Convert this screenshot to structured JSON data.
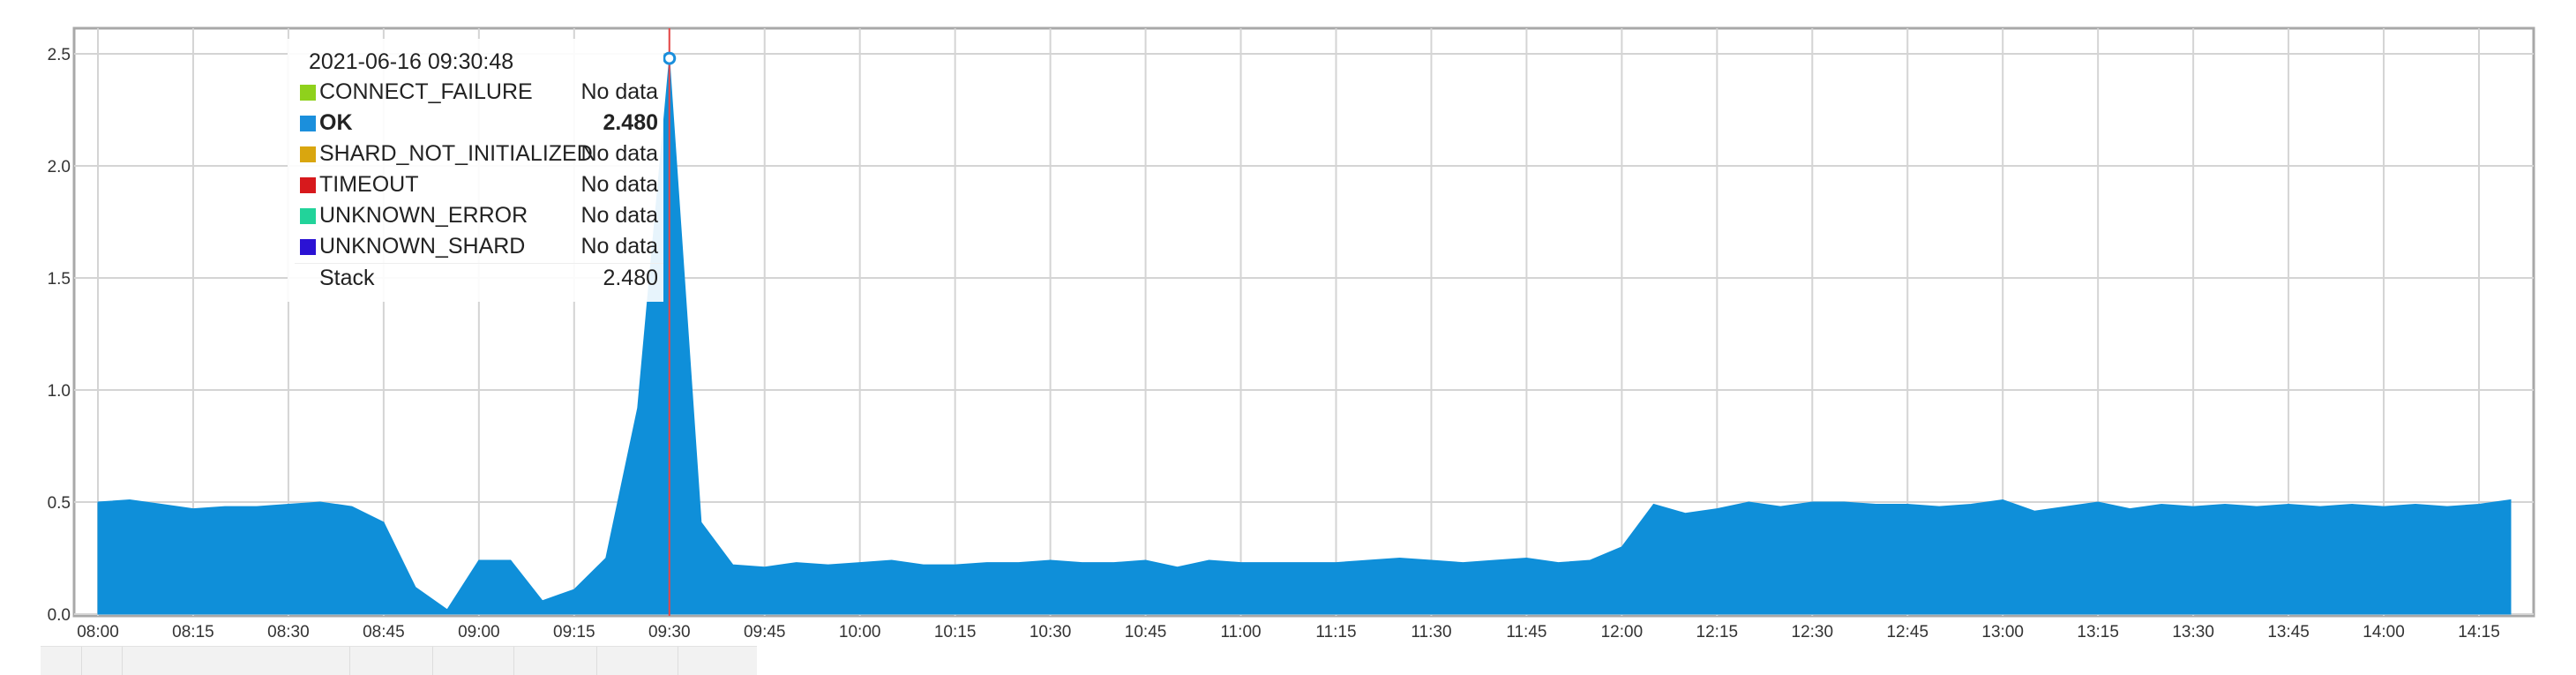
{
  "tooltip": {
    "timestamp": "2021-06-16 09:30:48",
    "rows": [
      {
        "name": "CONNECT_FAILURE",
        "value": "No data",
        "color": "#8fd11c"
      },
      {
        "name": "OK",
        "value": "2.480",
        "color": "#1b8fdc",
        "highlighted": true
      },
      {
        "name": "SHARD_NOT_INITIALIZED",
        "value": "No data",
        "color": "#d9a60f"
      },
      {
        "name": "TIMEOUT",
        "value": "No data",
        "color": "#d7191c"
      },
      {
        "name": "UNKNOWN_ERROR",
        "value": "No data",
        "color": "#22d39a"
      },
      {
        "name": "UNKNOWN_SHARD",
        "value": "No data",
        "color": "#2b12d4"
      }
    ],
    "stack_label": "Stack",
    "stack_value": "2.480"
  },
  "chart_data": {
    "type": "area",
    "x_unit": "time (HH:MM)",
    "x": [
      "08:00",
      "08:05",
      "08:10",
      "08:15",
      "08:20",
      "08:25",
      "08:30",
      "08:35",
      "08:40",
      "08:45",
      "08:50",
      "08:55",
      "09:00",
      "09:05",
      "09:10",
      "09:15",
      "09:20",
      "09:25",
      "09:30",
      "09:35",
      "09:40",
      "09:45",
      "09:50",
      "09:55",
      "10:00",
      "10:05",
      "10:10",
      "10:15",
      "10:20",
      "10:25",
      "10:30",
      "10:35",
      "10:40",
      "10:45",
      "10:50",
      "10:55",
      "11:00",
      "11:05",
      "11:10",
      "11:15",
      "11:20",
      "11:25",
      "11:30",
      "11:35",
      "11:40",
      "11:45",
      "11:50",
      "11:55",
      "12:00",
      "12:05",
      "12:10",
      "12:15",
      "12:20",
      "12:25",
      "12:30",
      "12:35",
      "12:40",
      "12:45",
      "12:50",
      "12:55",
      "13:00",
      "13:05",
      "13:10",
      "13:15",
      "13:20",
      "13:25",
      "13:30",
      "13:35",
      "13:40",
      "13:45",
      "13:50",
      "13:55",
      "14:00",
      "14:05",
      "14:10",
      "14:15",
      "14:20"
    ],
    "series": [
      {
        "name": "OK",
        "color": "#0f8fd9",
        "values": [
          0.5,
          0.51,
          0.49,
          0.47,
          0.48,
          0.48,
          0.49,
          0.5,
          0.48,
          0.41,
          0.12,
          0.02,
          0.24,
          0.24,
          0.06,
          0.11,
          0.25,
          0.92,
          2.48,
          0.41,
          0.22,
          0.21,
          0.23,
          0.22,
          0.23,
          0.24,
          0.22,
          0.22,
          0.23,
          0.23,
          0.24,
          0.23,
          0.23,
          0.24,
          0.21,
          0.24,
          0.23,
          0.23,
          0.23,
          0.23,
          0.24,
          0.25,
          0.24,
          0.23,
          0.24,
          0.25,
          0.23,
          0.24,
          0.3,
          0.49,
          0.45,
          0.47,
          0.5,
          0.48,
          0.5,
          0.5,
          0.49,
          0.49,
          0.48,
          0.49,
          0.51,
          0.46,
          0.48,
          0.5,
          0.47,
          0.49,
          0.48,
          0.49,
          0.48,
          0.49,
          0.48,
          0.49,
          0.48,
          0.49,
          0.48,
          0.49,
          0.51
        ]
      }
    ],
    "x_ticks": [
      "08:00",
      "08:15",
      "08:30",
      "08:45",
      "09:00",
      "09:15",
      "09:30",
      "09:45",
      "10:00",
      "10:15",
      "10:30",
      "10:45",
      "11:00",
      "11:15",
      "11:30",
      "11:45",
      "12:00",
      "12:15",
      "12:30",
      "12:45",
      "13:00",
      "13:15",
      "13:30",
      "13:45",
      "14:00",
      "14:15"
    ],
    "y_ticks": [
      "0.0",
      "0.5",
      "1.0",
      "1.5",
      "2.0",
      "2.5"
    ],
    "ylim": [
      0,
      2.5
    ],
    "grid": true,
    "cursor_x": "09:30",
    "cursor_color": "#e64646"
  }
}
